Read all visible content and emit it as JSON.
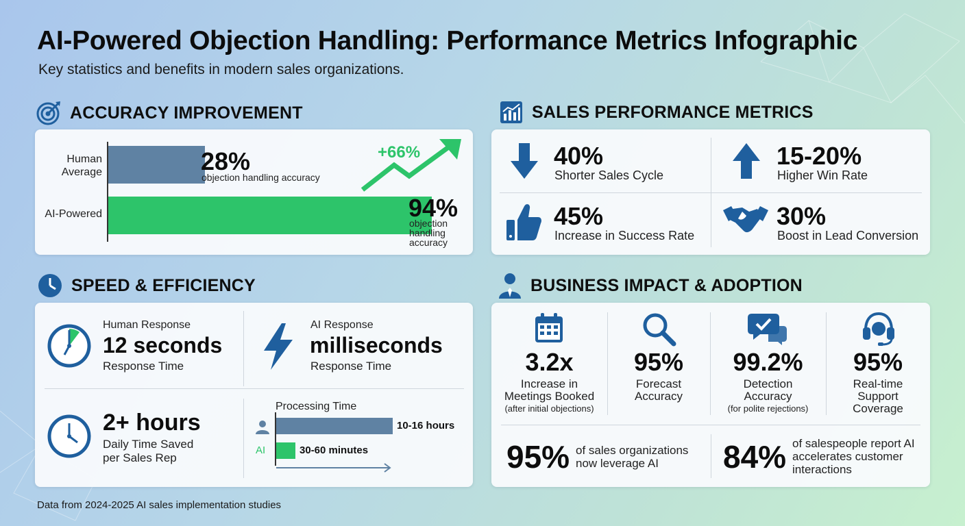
{
  "header": {
    "title": "AI-Powered Objection Handling: Performance Metrics Infographic",
    "subtitle": "Key statistics and benefits in modern sales organizations."
  },
  "accuracy": {
    "heading": "ACCURACY IMPROVEMENT",
    "human_label_1": "Human",
    "human_label_2": "Average",
    "human_value": 28,
    "human_pct": "28%",
    "human_desc": "objection handling accuracy",
    "ai_label": "AI-Powered",
    "ai_value": 94,
    "ai_pct": "94%",
    "ai_desc_1": "objection",
    "ai_desc_2": "handling",
    "ai_desc_3": "accuracy",
    "gain": "+66%"
  },
  "sales": {
    "heading": "SALES PERFORMANCE METRICS",
    "m1_value": "40%",
    "m1_label": "Shorter Sales Cycle",
    "m2_value": "15-20%",
    "m2_label": "Higher Win Rate",
    "m3_value": "45%",
    "m3_label": "Increase in Success Rate",
    "m4_value": "30%",
    "m4_label": "Boost in Lead Conversion"
  },
  "speed": {
    "heading": "SPEED & EFFICIENCY",
    "human_title": "Human Response",
    "human_value": "12 seconds",
    "human_sub": "Response Time",
    "ai_title": "AI Response",
    "ai_value": "milliseconds",
    "ai_sub": "Response Time",
    "saved_value": "2+ hours",
    "saved_line1": "Daily Time Saved",
    "saved_line2": "per Sales Rep",
    "proc_title": "Processing Time",
    "proc_human": "10-16 hours",
    "proc_ai_label": "AI",
    "proc_ai": "30-60 minutes"
  },
  "business": {
    "heading": "BUSINESS IMPACT & ADOPTION",
    "s1_value": "3.2x",
    "s1_l1": "Increase in",
    "s1_l2": "Meetings Booked",
    "s1_l3": "(after initial objections)",
    "s2_value": "95%",
    "s2_l1": "Forecast",
    "s2_l2": "Accuracy",
    "s3_value": "99.2%",
    "s3_l1": "Detection",
    "s3_l2": "Accuracy",
    "s3_l3": "(for polite rejections)",
    "s4_value": "95%",
    "s4_l1": "Real-time",
    "s4_l2": "Support",
    "s4_l3": "Coverage",
    "b1_value": "95%",
    "b1_l1": "of sales organizations",
    "b1_l2": "now leverage AI",
    "b2_value": "84%",
    "b2_l1": "of salespeople report AI",
    "b2_l2": "accelerates customer",
    "b2_l3": "interactions"
  },
  "footer": "Data from 2024-2025 AI sales implementation studies",
  "colors": {
    "blue": "#1f5f9e",
    "green": "#2dc46a",
    "slate": "#5f82a3"
  }
}
